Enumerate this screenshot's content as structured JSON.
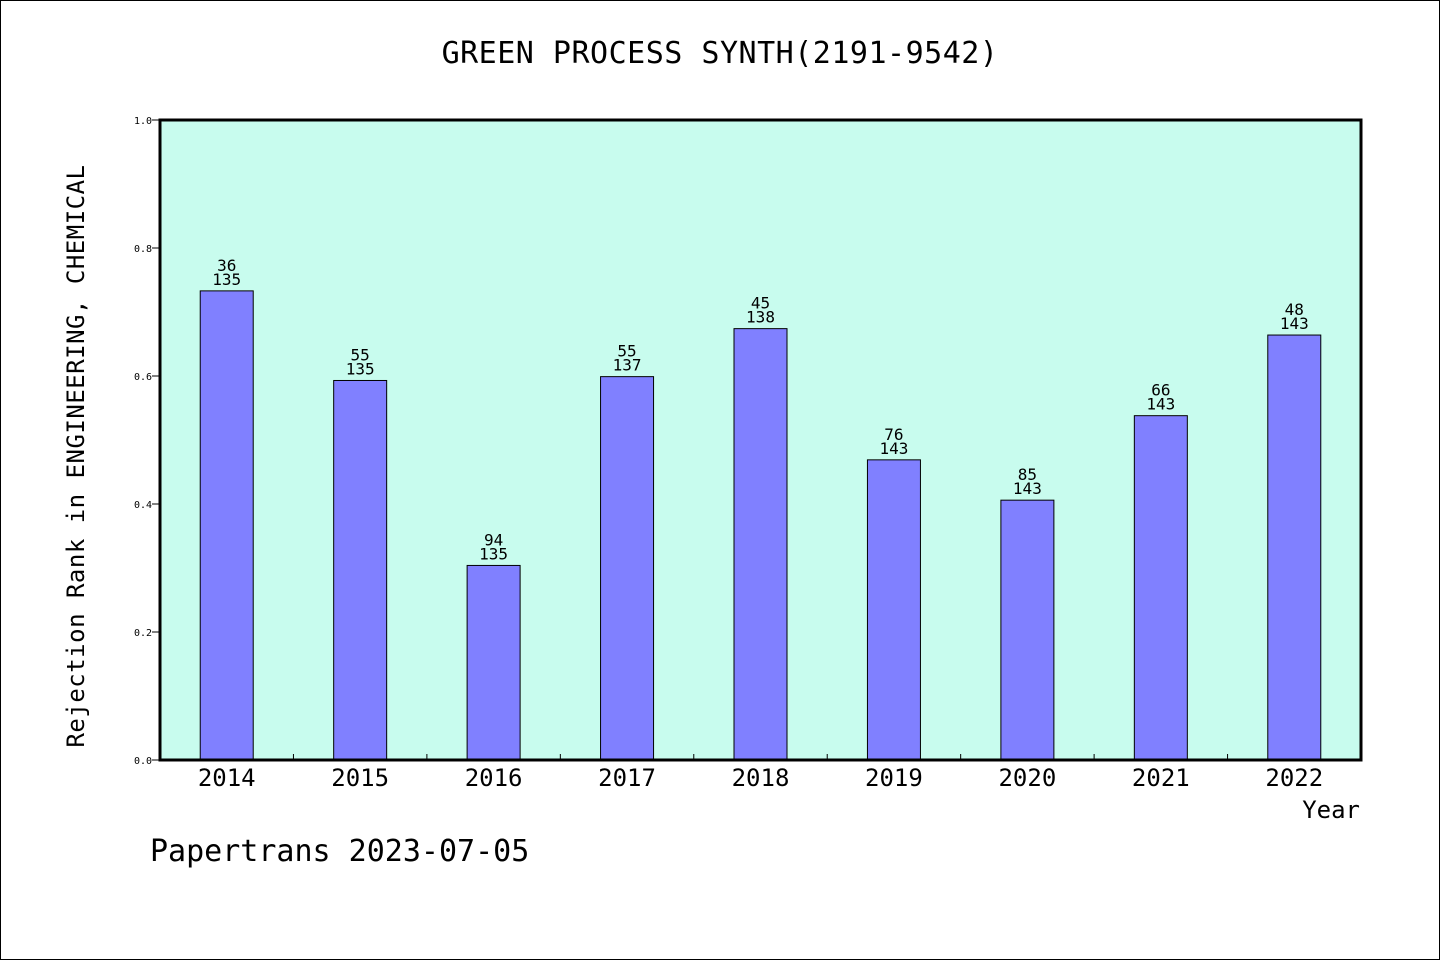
{
  "chart_data": {
    "type": "bar",
    "title": "GREEN PROCESS SYNTH(2191-9542)",
    "xlabel": "Year",
    "ylabel": "Rejection Rank in ENGINEERING, CHEMICAL",
    "ylim": [
      0,
      1.0
    ],
    "yticks": [
      "0.0",
      "0.2",
      "0.4",
      "0.6",
      "0.8",
      "1.0"
    ],
    "categories": [
      "2014",
      "2015",
      "2016",
      "2017",
      "2018",
      "2019",
      "2020",
      "2021",
      "2022"
    ],
    "values": [
      0.733,
      0.593,
      0.304,
      0.599,
      0.674,
      0.469,
      0.406,
      0.538,
      0.664
    ],
    "labels_top": [
      "36",
      "55",
      "94",
      "55",
      "45",
      "76",
      "85",
      "66",
      "48"
    ],
    "labels_bottom": [
      "135",
      "135",
      "135",
      "137",
      "138",
      "143",
      "143",
      "143",
      "143"
    ],
    "grid": false,
    "colors": {
      "plot_bg": "#c8fcee",
      "bar": "#8080ff"
    }
  },
  "footer": "Papertrans 2023-07-05"
}
